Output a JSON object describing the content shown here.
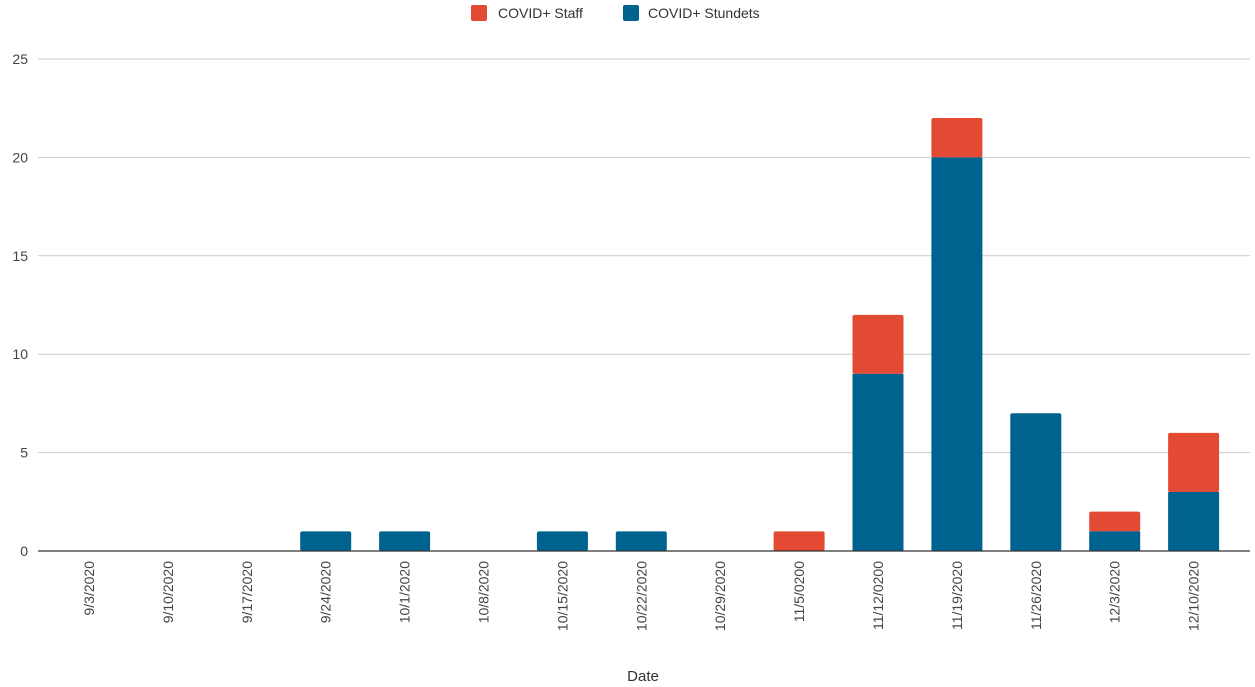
{
  "chart_data": {
    "type": "bar",
    "stacked": true,
    "title": "",
    "xlabel": "Date",
    "ylabel": "",
    "ylim": [
      0,
      25
    ],
    "yticks": [
      "0",
      "5",
      "10",
      "15",
      "20",
      "25"
    ],
    "grid": true,
    "legend_position": "top-center",
    "categories": [
      "9/3/2020",
      "9/10/2020",
      "9/17/2020",
      "9/24/2020",
      "10/1/2020",
      "10/8/2020",
      "10/15/2020",
      "10/22/2020",
      "10/29/2020",
      "11/5/0200",
      "11/12/0200",
      "11/19/2020",
      "11/26/2020",
      "12/3/2020",
      "12/10/2020"
    ],
    "series": [
      {
        "name": "COVID+ Staff",
        "color": "#e24a33",
        "values": [
          0,
          0,
          0,
          0,
          0,
          0,
          0,
          0,
          0,
          1,
          3,
          2,
          0,
          1,
          3
        ]
      },
      {
        "name": "COVID+ Stundets",
        "color": "#00628f",
        "values": [
          0,
          0,
          0,
          1,
          1,
          0,
          1,
          1,
          0,
          0,
          9,
          20,
          7,
          1,
          3
        ]
      }
    ]
  }
}
